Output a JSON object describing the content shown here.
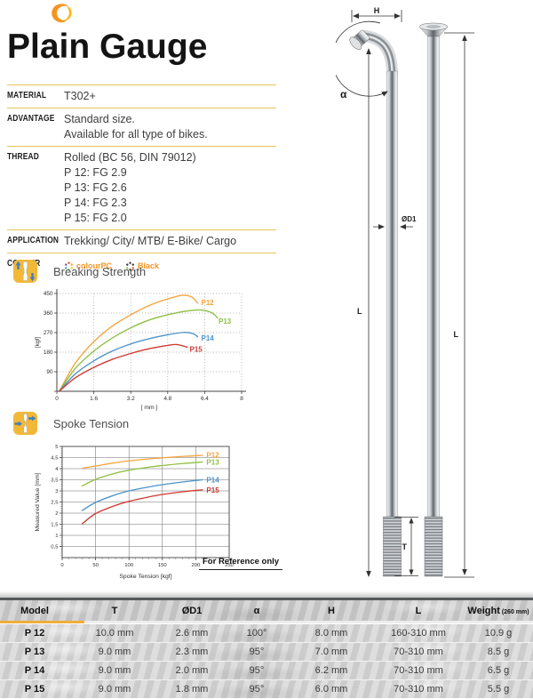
{
  "page": {
    "title": "Plain Gauge"
  },
  "specs": [
    {
      "label": "MATERIAL",
      "lines": [
        "T302+"
      ]
    },
    {
      "label": "ADVANTAGE",
      "lines": [
        "Standard size.",
        "Available for all type of bikes."
      ]
    },
    {
      "label": "THREAD",
      "lines": [
        "Rolled (BC 56, DIN 79012)",
        "P 12: FG 2.9",
        "P 13: FG 2.6",
        "P 14: FG 2.3",
        "P 15: FG 2.0"
      ]
    },
    {
      "label": "APPLICATION",
      "lines": [
        "Trekking/ City/ MTB/ E-Bike/ Cargo"
      ]
    },
    {
      "label": "COLOUR",
      "colour_options": [
        "colourPC",
        "Black"
      ]
    }
  ],
  "sections": {
    "reference_note": "For Reference only"
  },
  "chart_data": [
    {
      "type": "line",
      "title": "Breaking Strength",
      "xlabel": "[ mm ]",
      "ylabel": "[kgf]",
      "xlim": [
        0,
        8.0
      ],
      "ylim": [
        0,
        450
      ],
      "xticks": [
        0,
        1.6,
        3.2,
        4.8,
        6.4,
        8.0
      ],
      "yticks": [
        0,
        90,
        180,
        270,
        360,
        450
      ],
      "ytick_labels": [
        "",
        "90",
        "180",
        "270",
        "360",
        "450"
      ],
      "grid": "dotted",
      "box": false,
      "series": [
        {
          "name": "P12",
          "color": "#f5a43c",
          "points": [
            [
              0.1,
              0
            ],
            [
              0.8,
              130
            ],
            [
              1.6,
              228
            ],
            [
              2.4,
              300
            ],
            [
              3.2,
              352
            ],
            [
              4.0,
              395
            ],
            [
              4.8,
              425
            ],
            [
              5.4,
              441
            ],
            [
              5.8,
              436
            ],
            [
              6.1,
              406
            ]
          ],
          "label_at": [
            6.25,
            408
          ]
        },
        {
          "name": "P13",
          "color": "#8fbf44",
          "points": [
            [
              0.1,
              0
            ],
            [
              0.8,
              105
            ],
            [
              1.6,
              185
            ],
            [
              2.4,
              245
            ],
            [
              3.2,
              292
            ],
            [
              4.0,
              328
            ],
            [
              4.8,
              352
            ],
            [
              5.6,
              369
            ],
            [
              6.2,
              374
            ],
            [
              6.7,
              362
            ],
            [
              6.95,
              338
            ]
          ],
          "label_at": [
            7.0,
            322
          ]
        },
        {
          "name": "P14",
          "color": "#4e93c8",
          "points": [
            [
              0.1,
              0
            ],
            [
              0.8,
              80
            ],
            [
              1.6,
              140
            ],
            [
              2.4,
              185
            ],
            [
              3.2,
              218
            ],
            [
              4.0,
              242
            ],
            [
              4.8,
              260
            ],
            [
              5.5,
              271
            ],
            [
              5.9,
              265
            ],
            [
              6.1,
              251
            ]
          ],
          "label_at": [
            6.25,
            243
          ]
        },
        {
          "name": "P15",
          "color": "#cf3a32",
          "points": [
            [
              0.1,
              0
            ],
            [
              0.8,
              62
            ],
            [
              1.6,
              110
            ],
            [
              2.4,
              147
            ],
            [
              3.2,
              174
            ],
            [
              4.0,
              196
            ],
            [
              4.8,
              211
            ],
            [
              5.2,
              215
            ],
            [
              5.65,
              203
            ]
          ],
          "label_at": [
            5.75,
            192
          ]
        }
      ]
    },
    {
      "type": "line",
      "title": "Spoke Tension",
      "xlabel": "Spoke Tension [kgf]",
      "ylabel": "Measured Value [mm]",
      "xlim": [
        0,
        250
      ],
      "ylim": [
        0,
        5
      ],
      "xticks": [
        0,
        50,
        100,
        150,
        200,
        250
      ],
      "yticks": [
        0.5,
        1,
        1.5,
        2,
        2.5,
        3,
        3.5,
        4,
        4.5,
        5
      ],
      "ytick_labels": [
        "0,5",
        "1",
        "1,5",
        "2",
        "2,5",
        "3",
        "3,5",
        "4",
        "4,5",
        "5"
      ],
      "grid": "solid",
      "box": true,
      "minor_ticks": {
        "x": 10,
        "y": 0.1
      },
      "series": [
        {
          "name": "P12",
          "color": "#f5a43c",
          "points": [
            [
              30,
              4.02
            ],
            [
              50,
              4.12
            ],
            [
              80,
              4.27
            ],
            [
              100,
              4.35
            ],
            [
              130,
              4.44
            ],
            [
              150,
              4.49
            ],
            [
              180,
              4.55
            ],
            [
              210,
              4.6
            ]
          ],
          "label_at": [
            216,
            4.6
          ]
        },
        {
          "name": "P13",
          "color": "#8fbf44",
          "points": [
            [
              30,
              3.22
            ],
            [
              50,
              3.52
            ],
            [
              80,
              3.8
            ],
            [
              100,
              3.93
            ],
            [
              130,
              4.07
            ],
            [
              150,
              4.14
            ],
            [
              180,
              4.23
            ],
            [
              210,
              4.3
            ]
          ],
          "label_at": [
            216,
            4.28
          ]
        },
        {
          "name": "P14",
          "color": "#4e93c8",
          "points": [
            [
              30,
              2.12
            ],
            [
              50,
              2.48
            ],
            [
              80,
              2.83
            ],
            [
              100,
              3.0
            ],
            [
              130,
              3.18
            ],
            [
              150,
              3.28
            ],
            [
              180,
              3.4
            ],
            [
              210,
              3.5
            ]
          ],
          "label_at": [
            216,
            3.48
          ]
        },
        {
          "name": "P15",
          "color": "#cf3a32",
          "points": [
            [
              30,
              1.52
            ],
            [
              50,
              1.98
            ],
            [
              80,
              2.35
            ],
            [
              100,
              2.53
            ],
            [
              130,
              2.73
            ],
            [
              150,
              2.84
            ],
            [
              180,
              2.96
            ],
            [
              210,
              3.05
            ]
          ],
          "label_at": [
            216,
            3.02
          ]
        }
      ]
    }
  ],
  "diagram": {
    "h": "H",
    "alpha": "α",
    "d1": "ØD1",
    "l": "L",
    "t": "T"
  },
  "table": {
    "columns": [
      {
        "label": "Model"
      },
      {
        "label": "T"
      },
      {
        "label": "ØD1"
      },
      {
        "label": "α"
      },
      {
        "label": "H"
      },
      {
        "label": "L"
      },
      {
        "label": "Weight",
        "sublabel": "(260 mm)"
      }
    ],
    "rows": [
      [
        "P 12",
        "10.0 mm",
        "2.6 mm",
        "100°",
        "8.0 mm",
        "160-310 mm",
        "10.9 g"
      ],
      [
        "P 13",
        "9.0 mm",
        "2.3 mm",
        "95°",
        "7.0 mm",
        "70-310 mm",
        "8.5 g"
      ],
      [
        "P 14",
        "9.0 mm",
        "2.0 mm",
        "95°",
        "6.2 mm",
        "70-310 mm",
        "6.5 g"
      ],
      [
        "P 15",
        "9.0 mm",
        "1.8 mm",
        "95°",
        "6.0 mm",
        "70-310 mm",
        "5.5 g"
      ]
    ]
  },
  "colors": {
    "accent_gold": "#e7c45f",
    "accent_orange": "#f7941d",
    "icon_yellow": "#f2b838",
    "arrow_blue": "#3e7fbe",
    "table_model_bar": "#efae3a",
    "colour_pc_dots": [
      "#e94f1d",
      "#f5a623",
      "#ffd200",
      "#8bc53f",
      "#3e97d1",
      "#7a52a1"
    ],
    "black_dots": [
      "#3a3a3a",
      "#3a3a3a",
      "#e94f1d",
      "#3a3a3a",
      "#8bc53f",
      "#3a3a3a"
    ]
  }
}
